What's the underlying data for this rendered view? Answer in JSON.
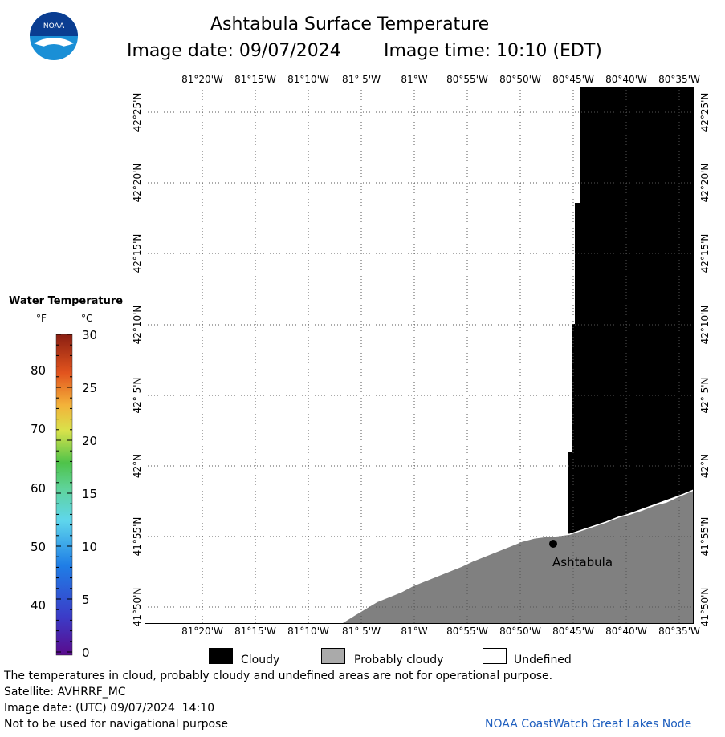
{
  "header": {
    "title": "Ashtabula Surface Temperature",
    "image_date": "Image date: 09/07/2024",
    "image_time": "Image time: 10:10 (EDT)"
  },
  "logo": {
    "text": "NOAA"
  },
  "colors": {
    "cloudy": "#000000",
    "probably_cloudy": "#808080",
    "undefined": "#ffffff",
    "grid": "#555555",
    "logo_blue": "#1a8fd6",
    "logo_dark": "#0a3d91",
    "footer_link": "#1f5fbf"
  },
  "map": {
    "longitude_labels": [
      "81°20'W",
      "81°15'W",
      "81°10'W",
      "81° 5'W",
      "81°W",
      "80°55'W",
      "80°50'W",
      "80°45'W",
      "80°40'W",
      "80°35'W"
    ],
    "latitude_labels": [
      "42°25'N",
      "42°20'N",
      "42°15'N",
      "42°10'N",
      "42° 5'N",
      "42°N",
      "41°55'N",
      "41°50'N"
    ],
    "place_label": "Ashtabula"
  },
  "colorbar": {
    "title": "Water Temperature",
    "unit_f": "°F",
    "unit_c": "°C",
    "f_ticks": [
      "80",
      "70",
      "60",
      "50",
      "40"
    ],
    "c_ticks": [
      "30",
      "25",
      "20",
      "15",
      "10",
      "5",
      "0"
    ]
  },
  "legend": {
    "cloudy": "Cloudy",
    "probably_cloudy": "Probably cloudy",
    "undefined": "Undefined"
  },
  "footer": {
    "note": "The temperatures in cloud, probably cloudy and undefined areas are not for operational purpose.",
    "satellite": "Satellite: AVHRRF_MC",
    "utc_date": "Image date: (UTC) 09/07/2024  14:10",
    "navigation": "Not to be used for navigational purpose",
    "credit": "NOAA CoastWatch Great Lakes Node"
  }
}
